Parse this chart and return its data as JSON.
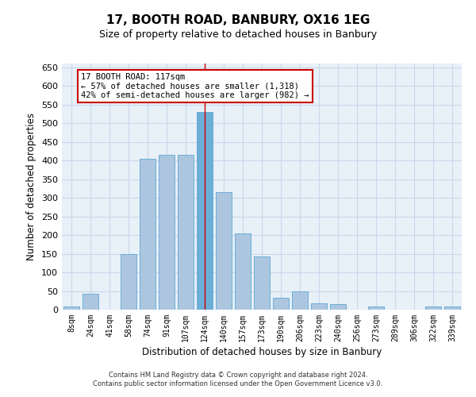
{
  "title": "17, BOOTH ROAD, BANBURY, OX16 1EG",
  "subtitle": "Size of property relative to detached houses in Banbury",
  "xlabel": "Distribution of detached houses by size in Banbury",
  "ylabel": "Number of detached properties",
  "categories": [
    "8sqm",
    "24sqm",
    "41sqm",
    "58sqm",
    "74sqm",
    "91sqm",
    "107sqm",
    "124sqm",
    "140sqm",
    "157sqm",
    "173sqm",
    "190sqm",
    "206sqm",
    "223sqm",
    "240sqm",
    "256sqm",
    "273sqm",
    "289sqm",
    "306sqm",
    "322sqm",
    "339sqm"
  ],
  "values": [
    8,
    42,
    0,
    150,
    405,
    415,
    415,
    530,
    315,
    205,
    143,
    33,
    48,
    17,
    15,
    0,
    8,
    0,
    0,
    8,
    8
  ],
  "bar_color": "#adc6e0",
  "bar_edge_color": "#6baed6",
  "highlight_index": 7,
  "highlight_color": "#6baed6",
  "ylim": [
    0,
    660
  ],
  "yticks": [
    0,
    50,
    100,
    150,
    200,
    250,
    300,
    350,
    400,
    450,
    500,
    550,
    600,
    650
  ],
  "annotation_box_text": "17 BOOTH ROAD: 117sqm\n← 57% of detached houses are smaller (1,318)\n42% of semi-detached houses are larger (982) →",
  "annotation_box_color": "#ffffff",
  "annotation_box_edge_color": "#cc0000",
  "grid_color": "#c8d8ea",
  "background_color": "#e8f0f8",
  "footer_line1": "Contains HM Land Registry data © Crown copyright and database right 2024.",
  "footer_line2": "Contains public sector information licensed under the Open Government Licence v3.0.",
  "bar_width": 0.85,
  "vline_color": "#cc0000",
  "title_fontsize": 11,
  "subtitle_fontsize": 9
}
